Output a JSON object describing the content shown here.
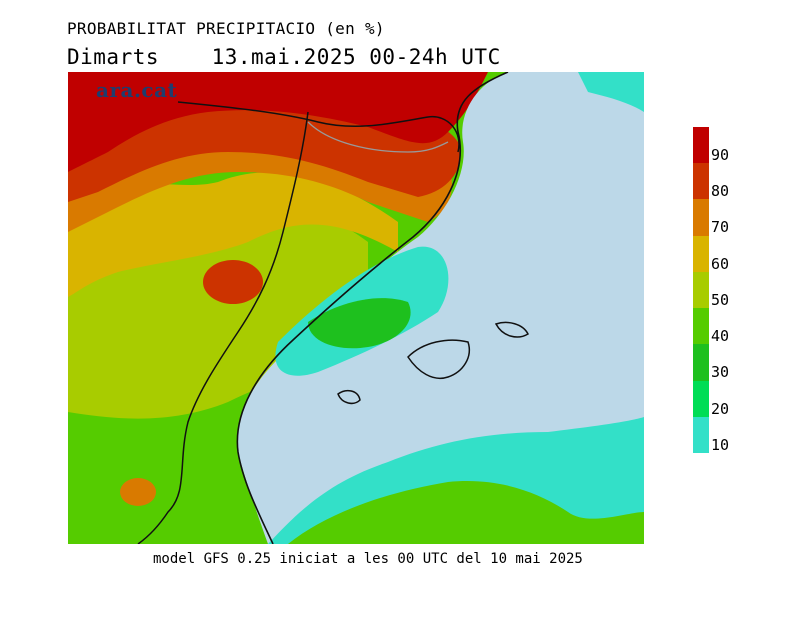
{
  "title": "PROBABILITAT PRECIPITACIO (en %)",
  "subtitle": "Dimarts    13.mai.2025 00-24h UTC",
  "watermark": "ara.cat",
  "footer": "model GFS 0.25 iniciat a les 00 UTC del 10 mai 2025",
  "legend": {
    "labels": [
      "90",
      "80",
      "70",
      "60",
      "50",
      "40",
      "30",
      "20",
      "10"
    ],
    "colors": [
      "#c00000",
      "#cc3300",
      "#d97a00",
      "#d9b400",
      "#a8cc00",
      "#55cc00",
      "#1ec01e",
      "#00dd55",
      "#33e0c8"
    ]
  },
  "colors": {
    "sea": "#bcd8e8",
    "border": "#111111",
    "river": "#999999"
  }
}
